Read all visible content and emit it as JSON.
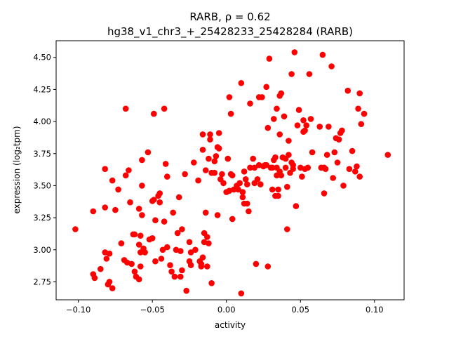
{
  "chart_data": {
    "type": "scatter",
    "title": "RARB, ρ = 0.62",
    "subtitle": "hg38_v1_chr3_+_25428233_25428284 (RARB)",
    "xlabel": "activity",
    "ylabel": "expression (log₂tpm)",
    "xlim": [
      -0.115,
      0.12
    ],
    "ylim": [
      2.61,
      4.63
    ],
    "xticks": [
      -0.1,
      -0.05,
      0.0,
      0.05,
      0.1
    ],
    "xtick_labels": [
      "−0.10",
      "−0.05",
      "0.00",
      "0.05",
      "0.10"
    ],
    "yticks": [
      2.75,
      3.0,
      3.25,
      3.5,
      3.75,
      4.0,
      4.25,
      4.5
    ],
    "ytick_labels": [
      "2.75",
      "3.00",
      "3.25",
      "3.50",
      "3.75",
      "4.00",
      "4.25",
      "4.50"
    ],
    "grid": false,
    "legend": "none",
    "marker_color": "#ff0000",
    "points": [
      [
        -0.102,
        3.16
      ],
      [
        -0.09,
        3.3
      ],
      [
        -0.09,
        2.81
      ],
      [
        -0.089,
        2.78
      ],
      [
        -0.085,
        2.85
      ],
      [
        -0.082,
        3.63
      ],
      [
        -0.082,
        3.33
      ],
      [
        -0.082,
        2.98
      ],
      [
        -0.081,
        2.93
      ],
      [
        -0.08,
        2.73
      ],
      [
        -0.079,
        2.97
      ],
      [
        -0.079,
        2.75
      ],
      [
        -0.077,
        2.7
      ],
      [
        -0.077,
        3.54
      ],
      [
        -0.075,
        3.31
      ],
      [
        -0.073,
        3.47
      ],
      [
        -0.071,
        3.05
      ],
      [
        -0.069,
        2.92
      ],
      [
        -0.068,
        4.1
      ],
      [
        -0.068,
        3.58
      ],
      [
        -0.067,
        2.9
      ],
      [
        -0.066,
        3.62
      ],
      [
        -0.065,
        3.37
      ],
      [
        -0.064,
        2.89
      ],
      [
        -0.063,
        3.12
      ],
      [
        -0.062,
        3.12
      ],
      [
        -0.062,
        2.83
      ],
      [
        -0.061,
        2.79
      ],
      [
        -0.059,
        2.77
      ],
      [
        -0.059,
        3.32
      ],
      [
        -0.059,
        3.04
      ],
      [
        -0.058,
        3.11
      ],
      [
        -0.058,
        2.98
      ],
      [
        -0.058,
        2.87
      ],
      [
        -0.057,
        3.7
      ],
      [
        -0.057,
        3.5
      ],
      [
        -0.057,
        3.27
      ],
      [
        -0.056,
        3.01
      ],
      [
        -0.055,
        2.98
      ],
      [
        -0.053,
        3.76
      ],
      [
        -0.052,
        3.08
      ],
      [
        -0.05,
        3.38
      ],
      [
        -0.05,
        3.09
      ],
      [
        -0.049,
        4.06
      ],
      [
        -0.049,
        3.39
      ],
      [
        -0.048,
        3.23
      ],
      [
        -0.048,
        2.91
      ],
      [
        -0.046,
        3.42
      ],
      [
        -0.045,
        3.37
      ],
      [
        -0.045,
        3.44
      ],
      [
        -0.044,
        2.93
      ],
      [
        -0.043,
        3.0
      ],
      [
        -0.042,
        4.1
      ],
      [
        -0.042,
        3.22
      ],
      [
        -0.041,
        3.67
      ],
      [
        -0.04,
        3.57
      ],
      [
        -0.04,
        3.02
      ],
      [
        -0.038,
        2.88
      ],
      [
        -0.037,
        2.83
      ],
      [
        -0.036,
        3.29
      ],
      [
        -0.035,
        2.79
      ],
      [
        -0.034,
        3.0
      ],
      [
        -0.033,
        3.13
      ],
      [
        -0.032,
        3.41
      ],
      [
        -0.031,
        2.99
      ],
      [
        -0.031,
        2.79
      ],
      [
        -0.03,
        2.84
      ],
      [
        -0.03,
        3.16
      ],
      [
        -0.028,
        3.59
      ],
      [
        -0.027,
        2.68
      ],
      [
        -0.025,
        2.91
      ],
      [
        -0.025,
        3.06
      ],
      [
        -0.024,
        2.98
      ],
      [
        -0.024,
        2.88
      ],
      [
        -0.022,
        3.68
      ],
      [
        -0.021,
        3.0
      ],
      [
        -0.019,
        3.54
      ],
      [
        -0.018,
        2.91
      ],
      [
        -0.017,
        2.89
      ],
      [
        -0.017,
        2.87
      ],
      [
        -0.016,
        3.9
      ],
      [
        -0.016,
        2.94
      ],
      [
        -0.016,
        3.78
      ],
      [
        -0.015,
        3.06
      ],
      [
        -0.015,
        3.13
      ],
      [
        -0.014,
        3.62
      ],
      [
        -0.014,
        3.29
      ],
      [
        -0.013,
        3.1
      ],
      [
        -0.013,
        2.87
      ],
      [
        -0.012,
        3.71
      ],
      [
        -0.012,
        3.05
      ],
      [
        -0.011,
        3.9
      ],
      [
        -0.011,
        3.86
      ],
      [
        -0.01,
        3.6
      ],
      [
        -0.01,
        2.74
      ],
      [
        -0.008,
        3.69
      ],
      [
        -0.008,
        3.6
      ],
      [
        -0.007,
        3.73
      ],
      [
        -0.006,
        3.8
      ],
      [
        -0.006,
        3.27
      ],
      [
        -0.005,
        3.91
      ],
      [
        -0.005,
        3.79
      ],
      [
        -0.004,
        3.55
      ],
      [
        -0.003,
        3.59
      ],
      [
        -0.002,
        3.52
      ],
      [
        0.0,
        3.45
      ],
      [
        0.001,
        3.71
      ],
      [
        0.002,
        3.46
      ],
      [
        0.002,
        4.19
      ],
      [
        0.003,
        3.59
      ],
      [
        0.003,
        4.06
      ],
      [
        0.004,
        3.24
      ],
      [
        0.004,
        3.58
      ],
      [
        0.005,
        3.47
      ],
      [
        0.007,
        3.5
      ],
      [
        0.008,
        3.47
      ],
      [
        0.009,
        3.52
      ],
      [
        0.01,
        4.3
      ],
      [
        0.01,
        2.66
      ],
      [
        0.011,
        3.41
      ],
      [
        0.011,
        3.45
      ],
      [
        0.012,
        3.61
      ],
      [
        0.012,
        3.36
      ],
      [
        0.013,
        3.55
      ],
      [
        0.014,
        3.51
      ],
      [
        0.014,
        3.36
      ],
      [
        0.015,
        3.3
      ],
      [
        0.016,
        3.64
      ],
      [
        0.016,
        4.14
      ],
      [
        0.018,
        3.71
      ],
      [
        0.019,
        3.64
      ],
      [
        0.019,
        3.52
      ],
      [
        0.02,
        2.89
      ],
      [
        0.021,
        3.55
      ],
      [
        0.022,
        4.19
      ],
      [
        0.022,
        3.66
      ],
      [
        0.023,
        3.51
      ],
      [
        0.024,
        4.19
      ],
      [
        0.025,
        3.65
      ],
      [
        0.026,
        3.66
      ],
      [
        0.027,
        3.66
      ],
      [
        0.027,
        4.27
      ],
      [
        0.028,
        2.87
      ],
      [
        0.028,
        3.95
      ],
      [
        0.029,
        4.49
      ],
      [
        0.03,
        3.64
      ],
      [
        0.031,
        3.47
      ],
      [
        0.031,
        3.64
      ],
      [
        0.032,
        4.02
      ],
      [
        0.032,
        3.7
      ],
      [
        0.033,
        3.42
      ],
      [
        0.033,
        3.72
      ],
      [
        0.034,
        3.58
      ],
      [
        0.034,
        4.1
      ],
      [
        0.034,
        3.64
      ],
      [
        0.035,
        3.47
      ],
      [
        0.035,
        3.42
      ],
      [
        0.036,
        4.2
      ],
      [
        0.036,
        3.61
      ],
      [
        0.036,
        3.9
      ],
      [
        0.037,
        4.22
      ],
      [
        0.037,
        3.58
      ],
      [
        0.038,
        3.72
      ],
      [
        0.039,
        4.04
      ],
      [
        0.04,
        3.71
      ],
      [
        0.04,
        3.64
      ],
      [
        0.041,
        3.49
      ],
      [
        0.041,
        3.16
      ],
      [
        0.042,
        3.74
      ],
      [
        0.042,
        3.85
      ],
      [
        0.043,
        3.6
      ],
      [
        0.044,
        4.37
      ],
      [
        0.044,
        3.68
      ],
      [
        0.045,
        3.66
      ],
      [
        0.045,
        3.63
      ],
      [
        0.046,
        4.54
      ],
      [
        0.047,
        3.34
      ],
      [
        0.048,
        3.97
      ],
      [
        0.049,
        4.09
      ],
      [
        0.05,
        3.64
      ],
      [
        0.051,
        3.57
      ],
      [
        0.052,
        4.01
      ],
      [
        0.052,
        3.92
      ],
      [
        0.053,
        3.93
      ],
      [
        0.053,
        3.63
      ],
      [
        0.054,
        3.97
      ],
      [
        0.055,
        3.64
      ],
      [
        0.056,
        4.37
      ],
      [
        0.057,
        4.02
      ],
      [
        0.058,
        3.76
      ],
      [
        0.063,
        3.96
      ],
      [
        0.064,
        3.64
      ],
      [
        0.065,
        4.52
      ],
      [
        0.066,
        3.64
      ],
      [
        0.066,
        3.44
      ],
      [
        0.067,
        3.63
      ],
      [
        0.068,
        3.74
      ],
      [
        0.069,
        3.96
      ],
      [
        0.071,
        4.43
      ],
      [
        0.072,
        3.56
      ],
      [
        0.073,
        3.76
      ],
      [
        0.074,
        3.87
      ],
      [
        0.075,
        3.68
      ],
      [
        0.076,
        3.86
      ],
      [
        0.077,
        3.91
      ],
      [
        0.078,
        3.93
      ],
      [
        0.079,
        3.5
      ],
      [
        0.082,
        4.24
      ],
      [
        0.083,
        3.63
      ],
      [
        0.085,
        3.77
      ],
      [
        0.087,
        3.61
      ],
      [
        0.088,
        3.65
      ],
      [
        0.089,
        4.1
      ],
      [
        0.09,
        3.57
      ],
      [
        0.09,
        4.22
      ],
      [
        0.091,
        3.98
      ],
      [
        0.093,
        4.06
      ],
      [
        0.109,
        3.74
      ]
    ]
  }
}
